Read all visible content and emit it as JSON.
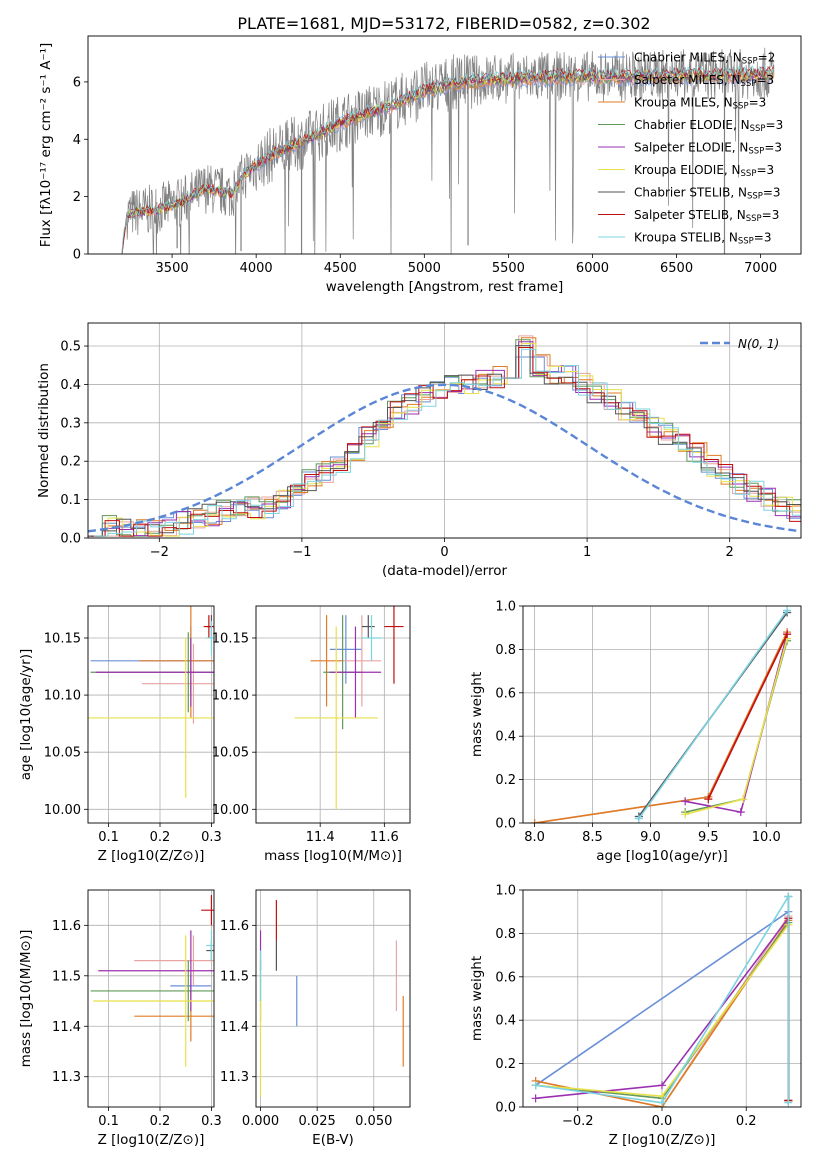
{
  "figure": {
    "title": "PLATE=1681, MJD=53172, FIBERID=0582, z=0.302"
  },
  "legend_spectrum": [
    {
      "label": "Chabrier MILES, N",
      "sub": "SSP",
      "tail": "=2",
      "color": "#6a8fd8"
    },
    {
      "label": "Salpeter MILES, N",
      "sub": "SSP",
      "tail": "=3",
      "color": "#e8a3a3"
    },
    {
      "label": "Kroupa MILES, N",
      "sub": "SSP",
      "tail": "=3",
      "color": "#e07b25"
    },
    {
      "label": "Chabrier ELODIE, N",
      "sub": "SSP",
      "tail": "=3",
      "color": "#5f9a5a"
    },
    {
      "label": "Salpeter ELODIE, N",
      "sub": "SSP",
      "tail": "=3",
      "color": "#9b30b0"
    },
    {
      "label": "Kroupa ELODIE, N",
      "sub": "SSP",
      "tail": "=3",
      "color": "#e8e04a"
    },
    {
      "label": "Chabrier STELIB, N",
      "sub": "SSP",
      "tail": "=3",
      "color": "#555555"
    },
    {
      "label": "Salpeter STELIB, N",
      "sub": "SSP",
      "tail": "=3",
      "color": "#c01010"
    },
    {
      "label": "Kroupa STELIB, N",
      "sub": "SSP",
      "tail": "=3",
      "color": "#7dd3e0"
    }
  ],
  "legend_hist": {
    "label": "N(0, 1)"
  },
  "chart_data": [
    {
      "type": "line",
      "name": "spectrum",
      "xlabel": "wavelength [Angstrom, rest frame]",
      "ylabel": "Flux [fλ10⁻¹⁷ erg cm⁻² s⁻¹ A⁻¹]",
      "xlim": [
        3000,
        7240
      ],
      "ylim": [
        0,
        7.6
      ],
      "xticks": [
        "3500",
        "4000",
        "4500",
        "5000",
        "5500",
        "6000",
        "6500",
        "7000"
      ],
      "yticks": [
        "0",
        "2",
        "4",
        "6"
      ],
      "grid": false,
      "legend_position": "right",
      "x_range_data": [
        3200,
        7080
      ],
      "continuum_points": [
        [
          3200,
          0.0
        ],
        [
          3230,
          1.4
        ],
        [
          3400,
          1.55
        ],
        [
          3550,
          1.8
        ],
        [
          3700,
          2.3
        ],
        [
          3850,
          2.1
        ],
        [
          3950,
          2.9
        ],
        [
          4100,
          3.5
        ],
        [
          4300,
          4.0
        ],
        [
          4500,
          4.6
        ],
        [
          4800,
          5.2
        ],
        [
          5000,
          5.7
        ],
        [
          5200,
          6.0
        ],
        [
          5400,
          6.1
        ],
        [
          5600,
          6.15
        ],
        [
          5800,
          6.2
        ],
        [
          6000,
          6.2
        ],
        [
          6200,
          6.2
        ],
        [
          6500,
          6.25
        ],
        [
          6800,
          6.25
        ],
        [
          7080,
          6.3
        ]
      ]
    },
    {
      "type": "line",
      "name": "residual_histogram",
      "xlabel": "(data-model)/error",
      "ylabel": "Normed distribution",
      "xlim": [
        -2.5,
        2.5
      ],
      "ylim": [
        0,
        0.56
      ],
      "xticks": [
        "−2",
        "−1",
        "0",
        "1",
        "2"
      ],
      "yticks": [
        "0.0",
        "0.1",
        "0.2",
        "0.3",
        "0.4",
        "0.5"
      ],
      "grid": true,
      "legend_position": "top-right",
      "reference_curve": "N(0,1)",
      "bin_width": 0.1,
      "histogram": [
        0.03,
        0.03,
        0.02,
        0.02,
        0.02,
        0.03,
        0.04,
        0.05,
        0.06,
        0.07,
        0.07,
        0.08,
        0.08,
        0.1,
        0.12,
        0.15,
        0.17,
        0.19,
        0.22,
        0.26,
        0.3,
        0.33,
        0.35,
        0.37,
        0.38,
        0.4,
        0.4,
        0.41,
        0.42,
        0.44,
        0.5,
        0.45,
        0.43,
        0.42,
        0.4,
        0.38,
        0.36,
        0.33,
        0.31,
        0.29,
        0.27,
        0.25,
        0.22,
        0.19,
        0.17,
        0.14,
        0.12,
        0.1,
        0.08,
        0.07,
        0.06,
        0.05,
        0.05,
        0.04,
        0.03
      ]
    },
    {
      "type": "scatter",
      "name": "age_vs_Z",
      "xlabel": "Z [log10(Z/Z⊙)]",
      "ylabel": "age [log10(age/yr)]",
      "xlim": [
        0.06,
        0.305
      ],
      "ylim": [
        9.988,
        10.178
      ],
      "xticks": [
        "0.1",
        "0.2",
        "0.3"
      ],
      "yticks": [
        "10.00",
        "10.05",
        "10.10",
        "10.15"
      ],
      "grid": true,
      "points": [
        {
          "x": 0.26,
          "y": 10.13,
          "xerr": 0.195,
          "yerr": 0.03,
          "color": "#6a8fd8"
        },
        {
          "x": 0.265,
          "y": 10.11,
          "xerr": 0.1,
          "yerr": 0.035,
          "color": "#e8a3a3"
        },
        {
          "x": 0.26,
          "y": 10.13,
          "xerr": 0.1,
          "yerr": 0.05,
          "color": "#e07b25"
        },
        {
          "x": 0.255,
          "y": 10.12,
          "xerr": 0.19,
          "yerr": 0.035,
          "color": "#5f9a5a"
        },
        {
          "x": 0.26,
          "y": 10.12,
          "xerr": 0.185,
          "yerr": 0.03,
          "color": "#9b30b0"
        },
        {
          "x": 0.25,
          "y": 10.08,
          "xerr": 0.19,
          "yerr": 0.07,
          "color": "#e8e04a"
        },
        {
          "x": 0.3,
          "y": 10.16,
          "xerr": 0.01,
          "yerr": 0.01,
          "color": "#555555"
        },
        {
          "x": 0.295,
          "y": 10.16,
          "xerr": 0.01,
          "yerr": 0.01,
          "color": "#c01010"
        },
        {
          "x": 0.3,
          "y": 10.15,
          "xerr": 0.01,
          "yerr": 0.015,
          "color": "#7dd3e0"
        }
      ]
    },
    {
      "type": "scatter",
      "name": "age_vs_mass",
      "xlabel": "mass [log10(M/M⊙)]",
      "ylabel": "",
      "xlim": [
        11.2,
        11.68
      ],
      "ylim": [
        9.988,
        10.178
      ],
      "xticks": [
        "11.4",
        "11.6"
      ],
      "yticks": [
        "10.00",
        "10.05",
        "10.10",
        "10.15"
      ],
      "grid": true,
      "points": [
        {
          "x": 11.48,
          "y": 10.14,
          "xerr": 0.05,
          "yerr": 0.03,
          "color": "#6a8fd8"
        },
        {
          "x": 11.53,
          "y": 10.13,
          "xerr": 0.06,
          "yerr": 0.04,
          "color": "#e8a3a3"
        },
        {
          "x": 11.42,
          "y": 10.13,
          "xerr": 0.05,
          "yerr": 0.04,
          "color": "#e07b25"
        },
        {
          "x": 11.47,
          "y": 10.12,
          "xerr": 0.06,
          "yerr": 0.05,
          "color": "#5f9a5a"
        },
        {
          "x": 11.51,
          "y": 10.12,
          "xerr": 0.08,
          "yerr": 0.04,
          "color": "#9b30b0"
        },
        {
          "x": 11.45,
          "y": 10.08,
          "xerr": 0.13,
          "yerr": 0.08,
          "color": "#e8e04a"
        },
        {
          "x": 11.55,
          "y": 10.16,
          "xerr": 0.02,
          "yerr": 0.01,
          "color": "#555555"
        },
        {
          "x": 11.63,
          "y": 10.16,
          "xerr": 0.03,
          "yerr": 0.05,
          "color": "#c01010"
        },
        {
          "x": 11.56,
          "y": 10.15,
          "xerr": 0.03,
          "yerr": 0.02,
          "color": "#7dd3e0"
        }
      ]
    },
    {
      "type": "line",
      "name": "mass_weight_vs_age",
      "xlabel": "age [log10(age/yr)]",
      "ylabel": "mass weight",
      "xlim": [
        7.9,
        10.3
      ],
      "ylim": [
        0,
        1.0
      ],
      "xticks": [
        "8.0",
        "8.5",
        "9.0",
        "9.5",
        "10.0"
      ],
      "yticks": [
        "0.0",
        "0.2",
        "0.4",
        "0.6",
        "0.8",
        "1.0"
      ],
      "grid": true,
      "series": [
        {
          "color": "#6a8fd8",
          "points": [
            [
              8.9,
              0.03
            ],
            [
              10.18,
              0.97
            ]
          ]
        },
        {
          "color": "#e8a3a3",
          "points": [
            [
              8.0,
              0.0
            ],
            [
              9.5,
              0.12
            ],
            [
              10.18,
              0.88
            ]
          ]
        },
        {
          "color": "#e07b25",
          "points": [
            [
              8.0,
              0.0
            ],
            [
              9.5,
              0.12
            ],
            [
              10.18,
              0.88
            ]
          ]
        },
        {
          "color": "#5f9a5a",
          "points": [
            [
              9.3,
              0.05
            ],
            [
              9.8,
              0.11
            ],
            [
              10.18,
              0.84
            ]
          ]
        },
        {
          "color": "#9b30b0",
          "points": [
            [
              9.3,
              0.1
            ],
            [
              9.78,
              0.05
            ],
            [
              10.18,
              0.87
            ]
          ]
        },
        {
          "color": "#e8e04a",
          "points": [
            [
              9.3,
              0.04
            ],
            [
              9.8,
              0.11
            ],
            [
              10.18,
              0.85
            ]
          ]
        },
        {
          "color": "#555555",
          "points": [
            [
              8.9,
              0.03
            ],
            [
              10.18,
              0.97
            ]
          ]
        },
        {
          "color": "#c01010",
          "points": [
            [
              9.5,
              0.11
            ],
            [
              10.18,
              0.87
            ]
          ]
        },
        {
          "color": "#7dd3e0",
          "points": [
            [
              8.9,
              0.02
            ],
            [
              10.18,
              0.98
            ]
          ]
        }
      ]
    },
    {
      "type": "scatter",
      "name": "mass_vs_Z",
      "xlabel": "Z [log10(Z/Z⊙)]",
      "ylabel": "mass [log10(M/M⊙)]",
      "xlim": [
        0.06,
        0.305
      ],
      "ylim": [
        11.24,
        11.67
      ],
      "xticks": [
        "0.1",
        "0.2",
        "0.3"
      ],
      "yticks": [
        "11.3",
        "11.4",
        "11.5",
        "11.6"
      ],
      "grid": true,
      "points": [
        {
          "x": 0.26,
          "y": 11.48,
          "xerr": 0.04,
          "yerr": 0.02,
          "color": "#6a8fd8"
        },
        {
          "x": 0.265,
          "y": 11.53,
          "xerr": 0.115,
          "yerr": 0.05,
          "color": "#e8a3a3"
        },
        {
          "x": 0.26,
          "y": 11.42,
          "xerr": 0.11,
          "yerr": 0.05,
          "color": "#e07b25"
        },
        {
          "x": 0.255,
          "y": 11.47,
          "xerr": 0.19,
          "yerr": 0.06,
          "color": "#5f9a5a"
        },
        {
          "x": 0.26,
          "y": 11.51,
          "xerr": 0.18,
          "yerr": 0.08,
          "color": "#9b30b0"
        },
        {
          "x": 0.25,
          "y": 11.45,
          "xerr": 0.18,
          "yerr": 0.13,
          "color": "#e8e04a"
        },
        {
          "x": 0.3,
          "y": 11.55,
          "xerr": 0.01,
          "yerr": 0.02,
          "color": "#555555"
        },
        {
          "x": 0.3,
          "y": 11.63,
          "xerr": 0.02,
          "yerr": 0.03,
          "color": "#c01010"
        },
        {
          "x": 0.3,
          "y": 11.56,
          "xerr": 0.01,
          "yerr": 0.03,
          "color": "#7dd3e0"
        }
      ]
    },
    {
      "type": "scatter",
      "name": "mass_vs_EBV",
      "xlabel": "E(B-V)",
      "ylabel": "",
      "xlim": [
        -0.002,
        0.066
      ],
      "ylim": [
        11.24,
        11.67
      ],
      "xticks": [
        "0.000",
        "0.025",
        "0.050"
      ],
      "yticks": [
        "11.3",
        "11.4",
        "11.5",
        "11.6"
      ],
      "grid": true,
      "points": [
        {
          "x": 0.016,
          "y": 11.45,
          "yerr": 0.05,
          "color": "#6a8fd8"
        },
        {
          "x": 0.06,
          "y": 11.5,
          "yerr": 0.07,
          "color": "#e8a3a3"
        },
        {
          "x": 0.063,
          "y": 11.39,
          "yerr": 0.07,
          "color": "#e07b25"
        },
        {
          "x": 0.0,
          "y": 11.47,
          "yerr": 0.06,
          "color": "#5f9a5a"
        },
        {
          "x": 0.0,
          "y": 11.55,
          "yerr": 0.04,
          "color": "#9b30b0"
        },
        {
          "x": 0.0,
          "y": 11.4,
          "yerr": 0.14,
          "color": "#e8e04a"
        },
        {
          "x": 0.007,
          "y": 11.54,
          "yerr": 0.03,
          "color": "#555555"
        },
        {
          "x": 0.007,
          "y": 11.61,
          "yerr": 0.04,
          "color": "#c01010"
        },
        {
          "x": 0.0,
          "y": 11.5,
          "yerr": 0.05,
          "color": "#7dd3e0"
        }
      ]
    },
    {
      "type": "line",
      "name": "mass_weight_vs_Z",
      "xlabel": "Z [log10(Z/Z⊙)]",
      "ylabel": "mass weight",
      "xlim": [
        -0.33,
        0.33
      ],
      "ylim": [
        0,
        1.0
      ],
      "xticks": [
        "−0.2",
        "0.0",
        "0.2"
      ],
      "yticks": [
        "0.0",
        "0.2",
        "0.4",
        "0.6",
        "0.8",
        "1.0"
      ],
      "grid": true,
      "series": [
        {
          "color": "#6a8fd8",
          "points": [
            [
              -0.3,
              0.1
            ],
            [
              0.3,
              0.9
            ]
          ]
        },
        {
          "color": "#e8a3a3",
          "points": [
            [
              -0.3,
              0.12
            ],
            [
              0.0,
              0.0
            ],
            [
              0.3,
              0.88
            ],
            [
              0.3,
              0.03
            ]
          ]
        },
        {
          "color": "#e07b25",
          "points": [
            [
              -0.3,
              0.12
            ],
            [
              0.0,
              0.0
            ],
            [
              0.3,
              0.86
            ],
            [
              0.3,
              0.03
            ]
          ]
        },
        {
          "color": "#5f9a5a",
          "points": [
            [
              -0.3,
              0.1
            ],
            [
              0.0,
              0.04
            ],
            [
              0.3,
              0.85
            ],
            [
              0.3,
              0.03
            ]
          ]
        },
        {
          "color": "#9b30b0",
          "points": [
            [
              -0.3,
              0.04
            ],
            [
              0.0,
              0.1
            ],
            [
              0.3,
              0.87
            ],
            [
              0.3,
              0.03
            ]
          ]
        },
        {
          "color": "#e8e04a",
          "points": [
            [
              -0.3,
              0.1
            ],
            [
              0.0,
              0.05
            ],
            [
              0.3,
              0.84
            ],
            [
              0.3,
              0.03
            ]
          ]
        },
        {
          "color": "#555555",
          "points": [
            [
              0.3,
              0.97
            ],
            [
              0.3,
              0.03
            ]
          ]
        },
        {
          "color": "#c01010",
          "points": [
            [
              0.3,
              0.87
            ],
            [
              0.3,
              0.03
            ]
          ]
        },
        {
          "color": "#7dd3e0",
          "points": [
            [
              -0.3,
              0.1
            ],
            [
              0.0,
              0.02
            ],
            [
              0.3,
              0.97
            ],
            [
              0.3,
              0.02
            ]
          ]
        }
      ]
    }
  ]
}
